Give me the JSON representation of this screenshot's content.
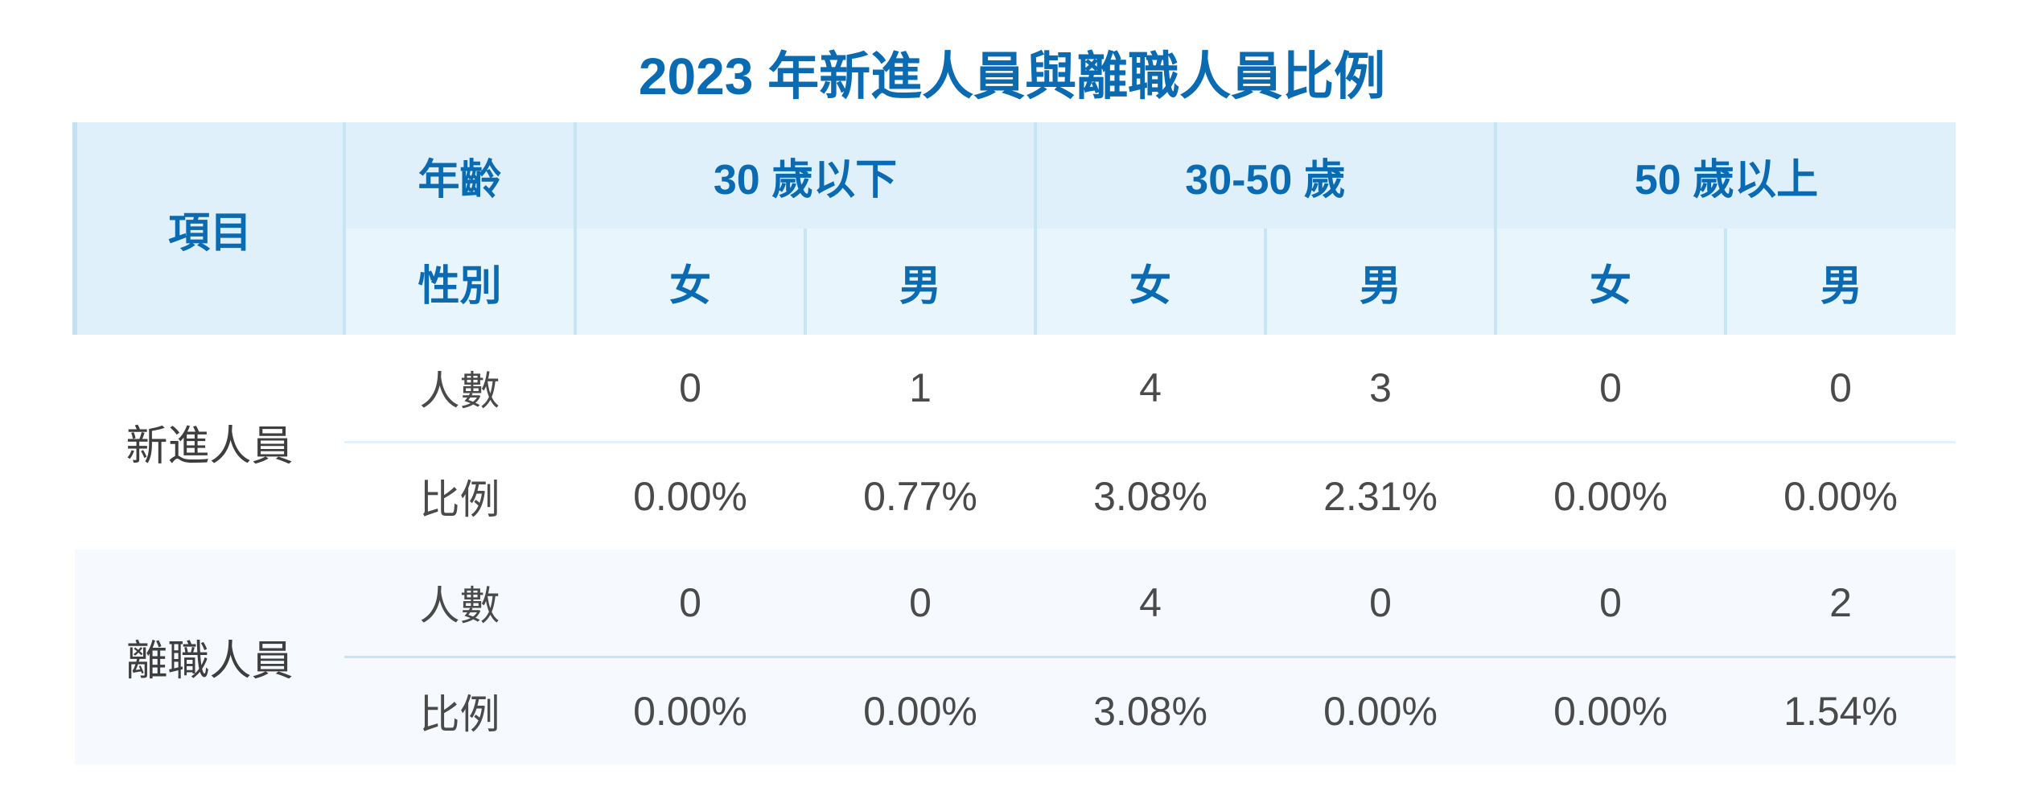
{
  "title": "2023 年新進人員與離職人員比例",
  "header": {
    "item": "項目",
    "age_label": "年齡",
    "gender_label": "性別",
    "age_groups": [
      "30 歲以下",
      "30-50 歲",
      "50 歲以上"
    ],
    "genders": [
      "女",
      "男",
      "女",
      "男",
      "女",
      "男"
    ]
  },
  "rows": [
    {
      "item": "新進人員",
      "count_label": "人數",
      "counts": [
        "0",
        "1",
        "4",
        "3",
        "0",
        "0"
      ],
      "ratio_label": "比例",
      "ratios": [
        "0.00%",
        "0.77%",
        "3.08%",
        "2.31%",
        "0.00%",
        "0.00%"
      ]
    },
    {
      "item": "離職人員",
      "count_label": "人數",
      "counts": [
        "0",
        "0",
        "4",
        "0",
        "0",
        "2"
      ],
      "ratio_label": "比例",
      "ratios": [
        "0.00%",
        "0.00%",
        "3.08%",
        "0.00%",
        "0.00%",
        "1.54%"
      ]
    }
  ],
  "colors": {
    "accent": "#0a6bb3",
    "header_bg": "#dff0fa",
    "alt_row_bg": "#f6f9fd"
  }
}
